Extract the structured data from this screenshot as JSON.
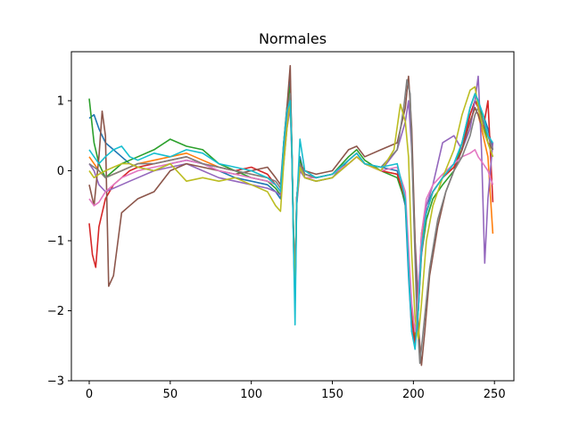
{
  "chart_data": {
    "type": "line",
    "title": "Normales",
    "xlabel": "",
    "ylabel": "",
    "xlim": [
      -11,
      262
    ],
    "ylim": [
      -3.0,
      1.7
    ],
    "xticks": [
      0,
      50,
      100,
      150,
      200,
      250
    ],
    "yticks": [
      -3,
      -2,
      -1,
      0,
      1
    ],
    "grid": false,
    "legend": "none",
    "colors": [
      "#1f77b4",
      "#ff7f0e",
      "#2ca02c",
      "#d62728",
      "#9467bd",
      "#8c564b",
      "#e377c2",
      "#7f7f7f",
      "#bcbd22",
      "#17becf"
    ],
    "series": [
      {
        "color": "#1f77b4",
        "x": [
          0,
          3,
          6,
          10,
          15,
          20,
          25,
          30,
          40,
          50,
          60,
          70,
          80,
          90,
          100,
          110,
          115,
          118,
          120,
          122,
          124,
          125,
          126,
          127,
          128,
          130,
          133,
          140,
          150,
          160,
          165,
          170,
          180,
          190,
          195,
          197,
          199,
          201,
          203,
          205,
          208,
          212,
          218,
          225,
          230,
          235,
          238,
          240,
          243,
          246,
          249
        ],
        "y": [
          0.75,
          0.8,
          0.6,
          0.4,
          0.3,
          0.2,
          0.1,
          0.05,
          0.0,
          0.1,
          0.15,
          0.1,
          0.0,
          -0.1,
          -0.15,
          -0.2,
          -0.3,
          -0.4,
          0.3,
          0.85,
          1.3,
          0.4,
          -1.0,
          -1.9,
          -0.5,
          0.2,
          -0.1,
          -0.15,
          -0.1,
          0.15,
          0.25,
          0.1,
          0.05,
          0.0,
          -0.5,
          -1.5,
          -2.3,
          -2.5,
          -1.8,
          -0.9,
          -0.5,
          -0.3,
          -0.1,
          0.1,
          0.4,
          0.8,
          1.0,
          0.95,
          0.8,
          0.6,
          0.3
        ]
      },
      {
        "color": "#ff7f0e",
        "x": [
          0,
          3,
          6,
          10,
          15,
          20,
          25,
          30,
          40,
          50,
          60,
          70,
          80,
          90,
          100,
          110,
          115,
          118,
          120,
          122,
          124,
          125,
          126,
          127,
          128,
          130,
          133,
          140,
          150,
          160,
          165,
          170,
          180,
          190,
          195,
          197,
          199,
          201,
          203,
          205,
          208,
          212,
          218,
          225,
          230,
          235,
          238,
          240,
          243,
          246,
          249
        ],
        "y": [
          0.2,
          0.1,
          0.0,
          -0.1,
          -0.05,
          0.0,
          0.05,
          0.1,
          0.15,
          0.2,
          0.25,
          0.15,
          0.05,
          0.0,
          -0.05,
          -0.1,
          -0.2,
          -0.3,
          0.2,
          0.7,
          1.1,
          0.3,
          -0.9,
          -1.8,
          -0.4,
          0.1,
          -0.05,
          -0.1,
          -0.05,
          0.1,
          0.2,
          0.1,
          0.0,
          -0.05,
          -0.4,
          -1.2,
          -2.0,
          -2.4,
          -1.9,
          -1.0,
          -0.6,
          -0.3,
          -0.1,
          0.05,
          0.3,
          0.7,
          0.9,
          0.8,
          0.5,
          0.2,
          -0.9
        ]
      },
      {
        "color": "#2ca02c",
        "x": [
          0,
          3,
          6,
          10,
          15,
          20,
          25,
          30,
          40,
          50,
          60,
          70,
          80,
          90,
          100,
          110,
          115,
          118,
          120,
          122,
          124,
          125,
          126,
          127,
          128,
          130,
          133,
          140,
          150,
          160,
          165,
          170,
          180,
          190,
          195,
          197,
          199,
          201,
          203,
          205,
          208,
          212,
          218,
          225,
          230,
          235,
          238,
          240,
          243,
          246,
          249
        ],
        "y": [
          1.03,
          0.4,
          0.1,
          -0.1,
          0.0,
          0.1,
          0.15,
          0.2,
          0.3,
          0.45,
          0.35,
          0.3,
          0.1,
          0.0,
          -0.1,
          -0.15,
          -0.25,
          -0.35,
          0.4,
          0.9,
          1.2,
          0.35,
          -0.8,
          -1.7,
          -0.45,
          0.15,
          -0.05,
          -0.1,
          -0.05,
          0.2,
          0.3,
          0.15,
          0.0,
          -0.1,
          -0.45,
          -1.3,
          -2.1,
          -2.45,
          -2.0,
          -1.2,
          -0.7,
          -0.4,
          -0.2,
          0.0,
          0.4,
          0.9,
          1.1,
          1.0,
          0.7,
          0.4,
          0.2
        ]
      },
      {
        "color": "#d62728",
        "x": [
          0,
          2,
          4,
          6,
          10,
          15,
          20,
          25,
          30,
          40,
          50,
          60,
          70,
          80,
          90,
          100,
          110,
          115,
          118,
          120,
          122,
          124,
          125,
          126,
          127,
          128,
          130,
          133,
          140,
          150,
          160,
          165,
          170,
          180,
          190,
          195,
          197,
          199,
          201,
          203,
          205,
          208,
          212,
          218,
          225,
          230,
          235,
          238,
          240,
          243,
          246,
          249
        ],
        "y": [
          -0.75,
          -1.2,
          -1.38,
          -0.8,
          -0.4,
          -0.2,
          -0.1,
          0.0,
          0.05,
          0.1,
          0.15,
          0.2,
          0.1,
          0.05,
          0.0,
          0.05,
          -0.05,
          -0.2,
          -0.3,
          0.3,
          0.8,
          1.0,
          0.3,
          -0.9,
          -1.7,
          -0.4,
          0.1,
          -0.05,
          -0.1,
          -0.05,
          0.15,
          0.25,
          0.1,
          0.0,
          -0.05,
          -0.4,
          -1.3,
          -2.1,
          -2.5,
          -2.0,
          -1.1,
          -0.6,
          -0.3,
          -0.1,
          0.05,
          0.3,
          0.8,
          1.0,
          0.9,
          0.6,
          1.0,
          -0.45
        ]
      },
      {
        "color": "#9467bd",
        "x": [
          0,
          3,
          6,
          10,
          15,
          20,
          25,
          30,
          40,
          50,
          60,
          70,
          80,
          90,
          100,
          110,
          115,
          118,
          120,
          122,
          124,
          125,
          126,
          127,
          128,
          130,
          133,
          140,
          150,
          160,
          165,
          170,
          180,
          190,
          195,
          197,
          199,
          201,
          203,
          205,
          208,
          212,
          218,
          225,
          230,
          235,
          238,
          240,
          242,
          244,
          246,
          249
        ],
        "y": [
          0.1,
          0.0,
          -0.2,
          -0.3,
          -0.25,
          -0.2,
          -0.15,
          -0.1,
          0.0,
          0.05,
          0.1,
          0.0,
          -0.1,
          -0.15,
          -0.2,
          -0.25,
          -0.3,
          -0.35,
          0.1,
          0.6,
          0.9,
          0.2,
          -0.9,
          -1.8,
          -0.5,
          0.0,
          -0.1,
          -0.15,
          -0.1,
          0.1,
          0.2,
          0.1,
          0.0,
          0.3,
          0.7,
          1.0,
          0.3,
          -1.0,
          -1.8,
          -1.2,
          -0.5,
          -0.2,
          0.4,
          0.5,
          0.3,
          0.6,
          1.0,
          1.35,
          0.3,
          -1.32,
          -0.4,
          0.4
        ]
      },
      {
        "color": "#8c564b",
        "x": [
          0,
          3,
          6,
          8,
          10,
          12,
          15,
          20,
          25,
          30,
          40,
          50,
          60,
          70,
          80,
          90,
          100,
          110,
          115,
          118,
          120,
          122,
          124,
          125,
          126,
          127,
          128,
          130,
          133,
          140,
          150,
          160,
          165,
          170,
          180,
          190,
          195,
          197,
          199,
          201,
          203,
          205,
          207,
          210,
          215,
          220,
          225,
          230,
          235,
          238,
          240,
          243,
          246,
          249
        ],
        "y": [
          -0.2,
          -0.5,
          0.2,
          0.85,
          0.5,
          -1.65,
          -1.5,
          -0.6,
          -0.5,
          -0.4,
          -0.3,
          0.0,
          0.1,
          0.05,
          0.0,
          -0.05,
          0.0,
          0.05,
          -0.1,
          -0.2,
          0.4,
          0.9,
          1.5,
          0.3,
          -0.8,
          -1.6,
          -0.4,
          0.1,
          0.0,
          -0.05,
          0.0,
          0.3,
          0.35,
          0.2,
          0.3,
          0.4,
          0.9,
          1.35,
          0.6,
          -1.0,
          -2.2,
          -2.78,
          -2.3,
          -1.5,
          -0.8,
          -0.3,
          0.0,
          0.3,
          0.7,
          0.9,
          0.8,
          0.6,
          0.4,
          0.3
        ]
      },
      {
        "color": "#e377c2",
        "x": [
          0,
          3,
          6,
          10,
          15,
          20,
          25,
          30,
          40,
          50,
          60,
          70,
          80,
          90,
          100,
          110,
          115,
          118,
          120,
          122,
          124,
          125,
          126,
          127,
          128,
          130,
          133,
          140,
          150,
          160,
          165,
          170,
          180,
          190,
          195,
          197,
          199,
          201,
          203,
          205,
          208,
          212,
          218,
          225,
          230,
          235,
          238,
          240,
          243,
          246,
          249
        ],
        "y": [
          -0.4,
          -0.5,
          -0.45,
          -0.3,
          -0.2,
          -0.1,
          -0.05,
          0.0,
          0.05,
          0.1,
          0.15,
          0.1,
          0.0,
          -0.05,
          -0.1,
          -0.15,
          -0.2,
          -0.3,
          0.2,
          0.7,
          1.0,
          0.3,
          -0.9,
          -1.8,
          -0.4,
          0.05,
          -0.1,
          -0.1,
          -0.05,
          0.1,
          0.2,
          0.1,
          0.0,
          0.05,
          -0.3,
          -1.1,
          -1.9,
          -2.3,
          -1.8,
          -0.9,
          -0.4,
          -0.2,
          -0.05,
          0.1,
          0.2,
          0.25,
          0.3,
          0.2,
          0.1,
          0.0,
          -0.2
        ]
      },
      {
        "color": "#7f7f7f",
        "x": [
          0,
          3,
          6,
          10,
          15,
          20,
          25,
          30,
          40,
          50,
          60,
          70,
          80,
          90,
          100,
          110,
          115,
          118,
          120,
          122,
          124,
          125,
          126,
          127,
          128,
          130,
          133,
          140,
          150,
          160,
          165,
          170,
          180,
          190,
          194,
          196,
          198,
          200,
          202,
          204,
          206,
          210,
          215,
          220,
          225,
          230,
          235,
          238,
          240,
          243,
          246,
          249
        ],
        "y": [
          0.1,
          0.05,
          0.0,
          -0.1,
          -0.05,
          0.0,
          0.05,
          0.1,
          0.1,
          0.15,
          0.2,
          0.1,
          0.05,
          0.0,
          -0.05,
          -0.1,
          -0.15,
          -0.25,
          0.3,
          0.8,
          1.1,
          0.3,
          -0.9,
          -1.7,
          -0.4,
          0.1,
          -0.05,
          -0.1,
          -0.05,
          0.15,
          0.25,
          0.1,
          0.05,
          0.3,
          0.9,
          1.3,
          1.1,
          -0.5,
          -2.0,
          -2.75,
          -2.3,
          -1.4,
          -0.7,
          -0.3,
          0.0,
          0.2,
          0.5,
          0.8,
          0.9,
          0.7,
          0.5,
          0.3
        ]
      },
      {
        "color": "#bcbd22",
        "x": [
          0,
          3,
          6,
          10,
          15,
          20,
          25,
          30,
          40,
          50,
          60,
          70,
          80,
          90,
          100,
          110,
          115,
          118,
          120,
          122,
          124,
          125,
          126,
          127,
          128,
          130,
          133,
          140,
          150,
          160,
          165,
          170,
          180,
          188,
          192,
          195,
          197,
          199,
          201,
          203,
          205,
          208,
          212,
          218,
          225,
          230,
          235,
          238,
          240,
          243,
          246,
          249
        ],
        "y": [
          0.0,
          -0.1,
          -0.05,
          0.0,
          0.05,
          0.1,
          0.1,
          0.05,
          0.0,
          0.1,
          -0.15,
          -0.1,
          -0.15,
          -0.1,
          -0.2,
          -0.3,
          -0.5,
          -0.58,
          0.1,
          0.6,
          1.0,
          0.3,
          -0.9,
          -1.8,
          -0.45,
          0.05,
          -0.1,
          -0.15,
          -0.1,
          0.1,
          0.2,
          0.1,
          0.0,
          0.3,
          0.95,
          0.7,
          0.2,
          -1.2,
          -2.1,
          -2.4,
          -1.9,
          -1.0,
          -0.5,
          -0.1,
          0.3,
          0.8,
          1.15,
          1.2,
          0.9,
          0.6,
          0.4,
          0.2
        ]
      },
      {
        "color": "#17becf",
        "x": [
          0,
          3,
          6,
          10,
          15,
          20,
          25,
          30,
          40,
          50,
          60,
          70,
          80,
          90,
          100,
          110,
          115,
          118,
          120,
          122,
          124,
          125,
          126,
          127,
          128,
          130,
          133,
          140,
          150,
          160,
          165,
          170,
          180,
          190,
          195,
          197,
          199,
          201,
          203,
          205,
          208,
          212,
          218,
          225,
          230,
          235,
          238,
          240,
          243,
          246,
          249
        ],
        "y": [
          0.3,
          0.2,
          0.1,
          0.2,
          0.3,
          0.35,
          0.2,
          0.15,
          0.25,
          0.2,
          0.3,
          0.25,
          0.1,
          0.05,
          0.0,
          -0.1,
          -0.2,
          -0.3,
          0.4,
          0.85,
          1.0,
          0.3,
          -1.0,
          -2.2,
          -0.5,
          0.45,
          0.0,
          -0.1,
          -0.05,
          0.15,
          0.25,
          0.1,
          0.05,
          0.1,
          -0.4,
          -1.4,
          -2.3,
          -2.55,
          -2.0,
          -1.1,
          -0.6,
          -0.3,
          -0.1,
          0.1,
          0.4,
          0.9,
          1.1,
          1.0,
          0.8,
          0.5,
          0.4
        ]
      }
    ]
  }
}
